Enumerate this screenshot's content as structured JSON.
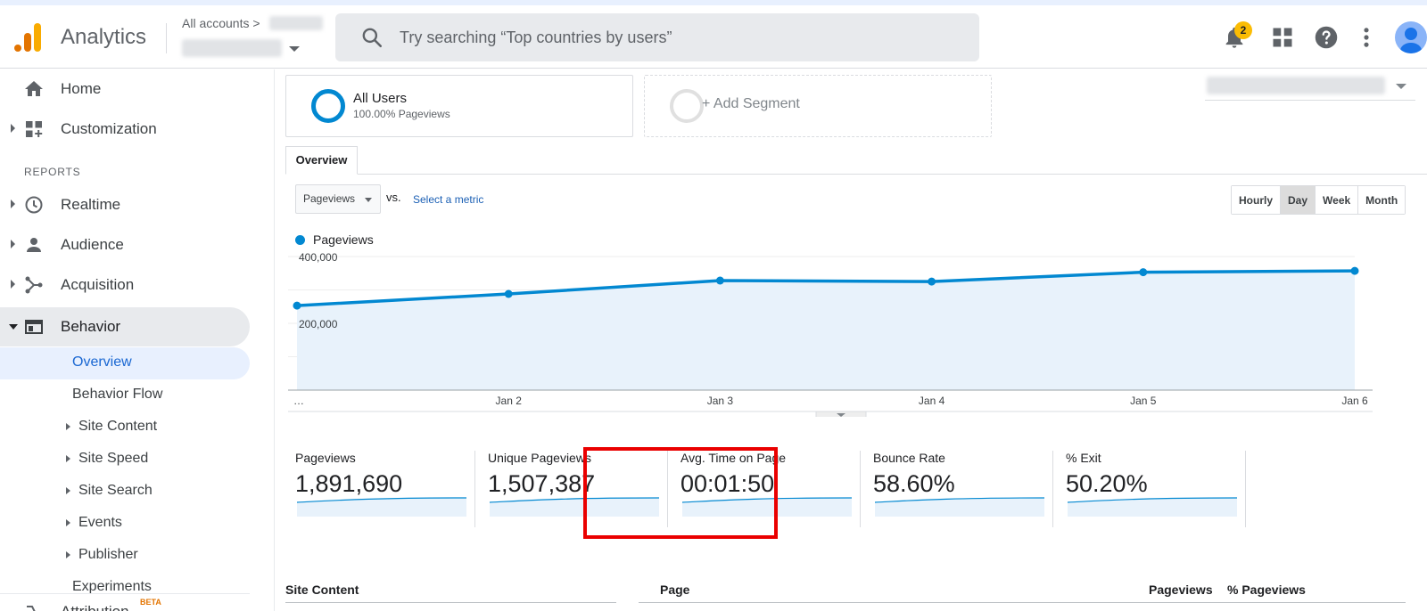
{
  "app": {
    "title": "Analytics",
    "accounts_label": "All accounts",
    "notification_count": "2",
    "brand_colors": {
      "orange": "#f9ab00",
      "dark_orange": "#e37400",
      "blue": "#0288d1",
      "highlight": "#ea0000"
    }
  },
  "search": {
    "placeholder": "Try searching “Top countries by users”"
  },
  "sidebar": {
    "home": "Home",
    "customization": "Customization",
    "reports_heading": "REPORTS",
    "realtime": "Realtime",
    "audience": "Audience",
    "acquisition": "Acquisition",
    "behavior": "Behavior",
    "behavior_children": {
      "overview": "Overview",
      "behavior_flow": "Behavior Flow",
      "site_content": "Site Content",
      "site_speed": "Site Speed",
      "site_search": "Site Search",
      "events": "Events",
      "publisher": "Publisher",
      "experiments": "Experiments"
    },
    "attribution": "Attribution",
    "attribution_badge": "BETA"
  },
  "segments": {
    "active": {
      "name": "All Users",
      "detail": "100.00% Pageviews"
    },
    "add": "+ Add Segment"
  },
  "tabs": {
    "overview": "Overview"
  },
  "chart_controls": {
    "metric": "Pageviews",
    "vs": "vs.",
    "select_metric": "Select a metric",
    "granularity": [
      "Hourly",
      "Day",
      "Week",
      "Month"
    ],
    "granularity_selected": "Day"
  },
  "chart_data": {
    "type": "area",
    "x": [
      "…",
      "Jan 2",
      "Jan 3",
      "Jan 4",
      "Jan 5",
      "Jan 6"
    ],
    "series": [
      {
        "name": "Pageviews",
        "values": [
          253000,
          288000,
          328000,
          325000,
          353000,
          357000
        ]
      }
    ],
    "ylim": [
      0,
      400000
    ],
    "ytick_labels": [
      "400,000",
      "200,000"
    ],
    "xtick_labels": [
      "…",
      "Jan 2",
      "Jan 3",
      "Jan 4",
      "Jan 5",
      "Jan 6"
    ],
    "grid": true,
    "color": "#0288d1",
    "fill_color": "#e8f2fb"
  },
  "scorecards": [
    {
      "label": "Pageviews",
      "value": "1,891,690"
    },
    {
      "label": "Unique Pageviews",
      "value": "1,507,387"
    },
    {
      "label": "Avg. Time on Page",
      "value": "00:01:50"
    },
    {
      "label": "Bounce Rate",
      "value": "58.60%"
    },
    {
      "label": "% Exit",
      "value": "50.20%"
    }
  ],
  "table": {
    "site_content": "Site Content",
    "page": "Page",
    "pageviews": "Pageviews",
    "pct_pageviews": "% Pageviews"
  }
}
